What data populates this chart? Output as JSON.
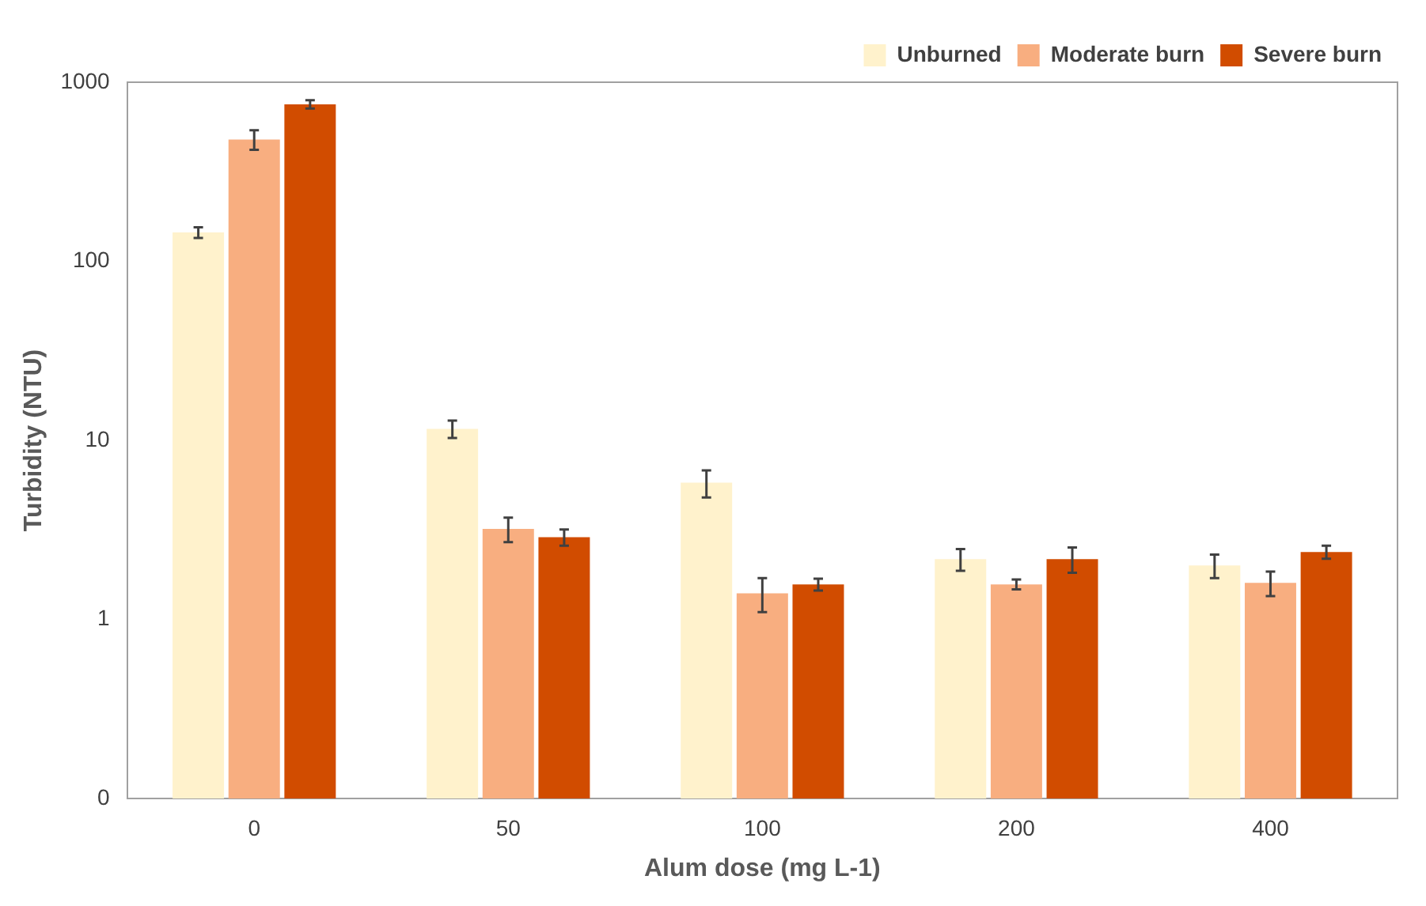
{
  "chart_data": {
    "type": "bar",
    "xlabel": "Alum dose (mg L-1)",
    "ylabel": "Turbidity (NTU)",
    "categories": [
      "0",
      "50",
      "100",
      "200",
      "400"
    ],
    "series": [
      {
        "name": "Unburned",
        "color": "#fff2cc",
        "values": [
          145,
          11.6,
          5.8,
          2.17,
          2.0
        ],
        "errors": [
          10,
          1.3,
          1,
          0.3,
          0.3
        ]
      },
      {
        "name": "Moderate burn",
        "color": "#f8ae80",
        "values": [
          479,
          3.2,
          1.4,
          1.57,
          1.6
        ],
        "errors": [
          60,
          0.5,
          0.3,
          0.1,
          0.25
        ]
      },
      {
        "name": "Severe burn",
        "color": "#d14c00",
        "values": [
          753,
          2.88,
          1.57,
          2.17,
          2.38
        ],
        "errors": [
          40,
          0.3,
          0.12,
          0.35,
          0.2
        ]
      }
    ],
    "log": "y",
    "ylim": [
      0.1,
      1000
    ],
    "yticks": [
      {
        "value": 0.1,
        "label": "0"
      },
      1,
      10,
      100,
      1000
    ],
    "grid": false,
    "legend": "top right"
  }
}
